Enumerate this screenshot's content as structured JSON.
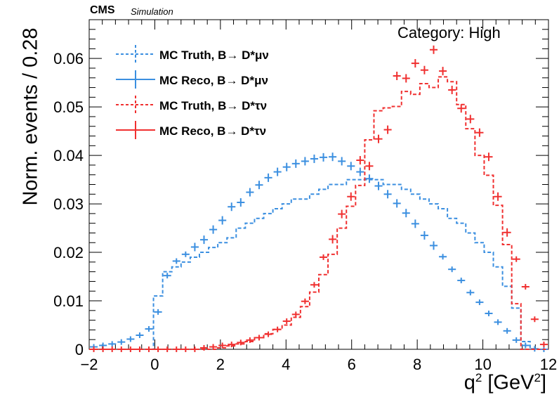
{
  "header": {
    "experiment": "CMS",
    "tag": "Simulation",
    "category": "Category: High"
  },
  "axes": {
    "ylabel": "Norm. events / 0.28",
    "xlabel_base": "q",
    "xlabel_sup1": "2",
    "xlabel_mid": " [GeV",
    "xlabel_sup2": "2",
    "xlabel_end": "]"
  },
  "legend": [
    {
      "label": "MC Truth, B→ D*μν",
      "color": "#3b8fe0",
      "style": "dashed"
    },
    {
      "label": "MC Reco, B→ D*μν",
      "color": "#3b8fe0",
      "style": "markers"
    },
    {
      "label": "MC Truth, B→ D*τν",
      "color": "#f03030",
      "style": "dashed"
    },
    {
      "label": "MC Reco, B→ D*τν",
      "color": "#f03030",
      "style": "markers"
    }
  ],
  "chart_data": {
    "type": "line",
    "title": "",
    "xlabel": "q² [GeV²]",
    "ylabel": "Norm. events / 0.28",
    "xlim": [
      -2,
      12
    ],
    "ylim": [
      0,
      0.068
    ],
    "xticks": [
      -2,
      0,
      2,
      4,
      6,
      8,
      10,
      12
    ],
    "xtick_labels": [
      "−2",
      "0",
      "2",
      "4",
      "6",
      "8",
      "10",
      "12"
    ],
    "yticks": [
      0,
      0.01,
      0.02,
      0.03,
      0.04,
      0.05,
      0.06
    ],
    "ytick_labels": [
      "0",
      "0.01",
      "0.02",
      "0.03",
      "0.04",
      "0.05",
      "0.06"
    ],
    "bin_width": 0.28,
    "bin_edges_start": -2.0,
    "bin_count": 50,
    "grid": false,
    "legend_position": "top-left",
    "series": [
      {
        "name": "MC Truth, B→ D*μν",
        "style": "dashed-step",
        "color": "#3b8fe0",
        "values": [
          0,
          0,
          0,
          0,
          0,
          0,
          0,
          0.011,
          0.016,
          0.017,
          0.018,
          0.019,
          0.02,
          0.021,
          0.022,
          0.023,
          0.025,
          0.026,
          0.027,
          0.028,
          0.029,
          0.03,
          0.031,
          0.031,
          0.032,
          0.033,
          0.034,
          0.034,
          0.035,
          0.035,
          0.035,
          0.035,
          0.034,
          0.034,
          0.033,
          0.032,
          0.031,
          0.03,
          0.029,
          0.027,
          0.026,
          0.024,
          0.022,
          0.02,
          0.017,
          0.013,
          0.0085,
          0.0016,
          0,
          0
        ]
      },
      {
        "name": "MC Reco, B→ D*μν",
        "style": "markers",
        "color": "#3b8fe0",
        "values": [
          0.0005,
          0.0008,
          0.0011,
          0.0015,
          0.0021,
          0.0029,
          0.0042,
          0.0077,
          0.0152,
          0.0182,
          0.0196,
          0.0211,
          0.0226,
          0.0247,
          0.0266,
          0.0294,
          0.0303,
          0.0324,
          0.0339,
          0.0354,
          0.0366,
          0.0376,
          0.0383,
          0.0388,
          0.0393,
          0.0396,
          0.0397,
          0.0388,
          0.0378,
          0.0366,
          0.0352,
          0.0337,
          0.032,
          0.0301,
          0.0281,
          0.0259,
          0.0235,
          0.0214,
          0.0191,
          0.0165,
          0.0142,
          0.0117,
          0.0097,
          0.0074,
          0.0056,
          0.0038,
          0.0019,
          0.0008,
          0.0001,
          0
        ]
      },
      {
        "name": "MC Truth, B→ D*τν",
        "style": "dashed-step",
        "color": "#f03030",
        "values": [
          0,
          0,
          0,
          0,
          0,
          0,
          0,
          0,
          0,
          0,
          0,
          0,
          0,
          0,
          0.0003,
          0.0007,
          0.0011,
          0.0016,
          0.0024,
          0.0032,
          0.0041,
          0.005,
          0.0066,
          0.0088,
          0.0118,
          0.0154,
          0.0196,
          0.025,
          0.0295,
          0.0338,
          0.0432,
          0.0492,
          0.0498,
          0.0501,
          0.0532,
          0.0526,
          0.0548,
          0.054,
          0.0562,
          0.0552,
          0.0505,
          0.0455,
          0.04,
          0.0359,
          0.0297,
          0.0216,
          0.0094,
          0,
          0,
          0
        ]
      },
      {
        "name": "MC Reco, B→ D*τν",
        "style": "markers",
        "color": "#f03030",
        "values": [
          0,
          0,
          0,
          0,
          0,
          0,
          0,
          0,
          0,
          0,
          0,
          0,
          0.0003,
          0.0005,
          0.0008,
          0.001,
          0.0014,
          0.0019,
          0.0024,
          0.0031,
          0.0041,
          0.0058,
          0.0072,
          0.0099,
          0.0133,
          0.019,
          0.0227,
          0.0279,
          0.0315,
          0.039,
          0.0378,
          0.0434,
          0.0453,
          0.0564,
          0.0559,
          0.059,
          0.0576,
          0.0618,
          0.0574,
          0.0535,
          0.0497,
          0.0475,
          0.0447,
          0.0397,
          0.0315,
          0.0241,
          0.0186,
          0.0129,
          0.0062,
          0.001
        ]
      }
    ]
  }
}
